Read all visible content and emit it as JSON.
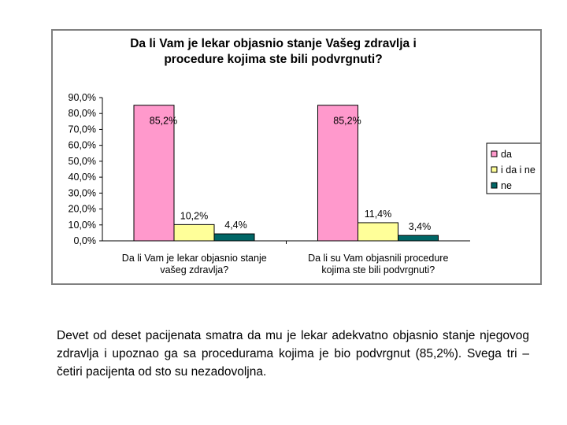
{
  "chart_data": {
    "type": "bar",
    "title_lines": [
      "Da li Vam je lekar objasnio  stanje Vašeg zdravlja i",
      "procedure kojima ste bili podvrgnuti?"
    ],
    "categories": [
      [
        "Da li Vam je lekar objasnio stanje",
        "vašeg zdravlja?"
      ],
      [
        "Da li su Vam objasnili procedure",
        "kojima ste bili podvrgnuti?"
      ]
    ],
    "series": [
      {
        "name": "da",
        "color": "#ff99cc",
        "values": [
          85.2,
          85.2
        ],
        "labels": [
          "85,2%",
          "85,2%"
        ]
      },
      {
        "name": "i da i ne",
        "color": "#ffff99",
        "values": [
          10.2,
          11.4
        ],
        "labels": [
          "10,2%",
          "11,4%"
        ]
      },
      {
        "name": "ne",
        "color": "#006666",
        "values": [
          4.4,
          3.4
        ],
        "labels": [
          "4,4%",
          "3,4%"
        ]
      }
    ],
    "yticks": [
      "0,0%",
      "10,0%",
      "20,0%",
      "30,0%",
      "40,0%",
      "50,0%",
      "60,0%",
      "70,0%",
      "80,0%",
      "90,0%"
    ],
    "ylim": [
      0,
      90
    ],
    "legend_position": "right",
    "grid": false
  },
  "caption": "Devet od deset pacijenata smatra da mu je lekar adekvatno objasnio stanje njegovog zdravlja i upoznao ga sa procedurama kojima je bio podvrgnut (85,2%). Svega tri – četiri pacijenta od sto su nezadovoljna."
}
